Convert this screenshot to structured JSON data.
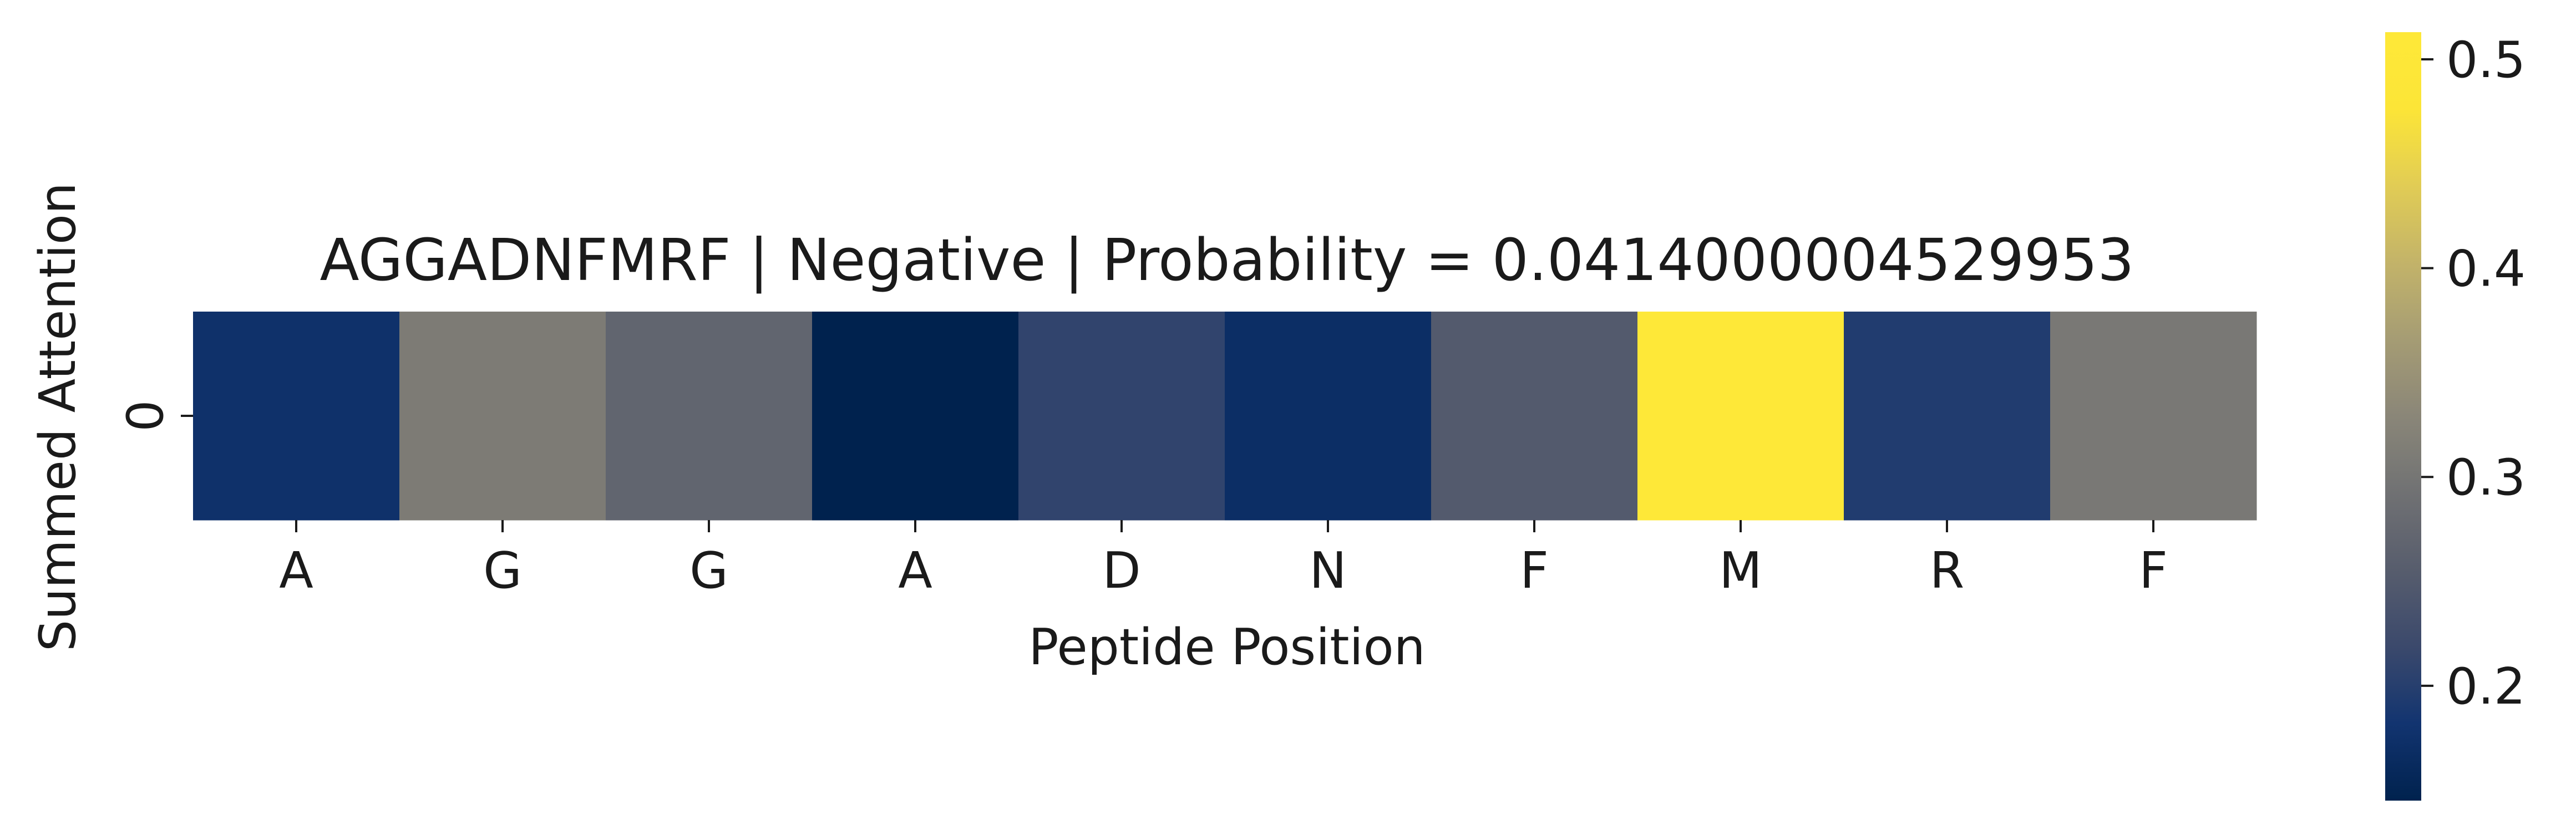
{
  "chart_data": {
    "type": "heatmap",
    "title": "AGGADNFMRF | Negative | Probability = 0.0414000004529953",
    "xlabel": "Peptide Position",
    "ylabel": "Summed Attention",
    "x_categories": [
      "A",
      "G",
      "G",
      "A",
      "D",
      "N",
      "F",
      "M",
      "R",
      "F"
    ],
    "y_categories": [
      "0"
    ],
    "values": [
      [
        0.175,
        0.31,
        0.27,
        0.145,
        0.21,
        0.17,
        0.25,
        0.51,
        0.195,
        0.305
      ]
    ],
    "colormap": "cividis",
    "colorbar": {
      "min": 0.145,
      "max": 0.513,
      "ticks": [
        0.2,
        0.3,
        0.4,
        0.5
      ],
      "tick_labels": [
        "0.2",
        "0.3",
        "0.4",
        "0.5"
      ]
    },
    "grid": false,
    "legend": "colorbar-right"
  }
}
